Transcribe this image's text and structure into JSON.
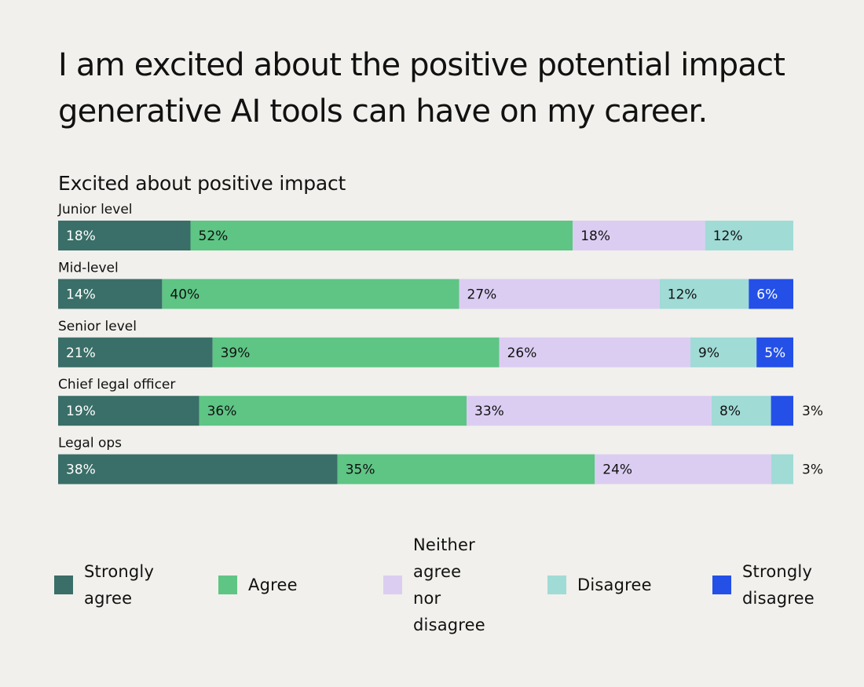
{
  "title": "I am excited about the positive potential impact generative AI tools can have on my career.",
  "chart_data": {
    "type": "bar",
    "orientation": "horizontal",
    "stacked": true,
    "title": "Excited about positive impact",
    "value_unit": "%",
    "categories": [
      "Junior level",
      "Mid-level",
      "Senior level",
      "Chief legal officer",
      "Legal ops"
    ],
    "series": [
      {
        "name": "Strongly agree",
        "color": "#3a6e68",
        "label_color": "#ffffff",
        "values": [
          18,
          14,
          21,
          19,
          38
        ]
      },
      {
        "name": "Agree",
        "color": "#5ec585",
        "label_color": "#111111",
        "values": [
          52,
          40,
          39,
          36,
          35
        ]
      },
      {
        "name": "Neither agree nor disagree",
        "color": "#dbcdf2",
        "label_color": "#111111",
        "values": [
          18,
          27,
          26,
          33,
          24
        ]
      },
      {
        "name": "Disagree",
        "color": "#a0dbd6",
        "label_color": "#111111",
        "values": [
          12,
          12,
          9,
          8,
          3
        ]
      },
      {
        "name": "Strongly disagree",
        "color": "#2450e8",
        "label_color": "#ffffff",
        "values": [
          0,
          6,
          5,
          3,
          0
        ]
      }
    ],
    "legend_position": "bottom",
    "grid": false
  },
  "legend": {
    "items": [
      {
        "label": "Strongly agree",
        "lines": [
          "Strongly",
          "agree"
        ]
      },
      {
        "label": "Agree",
        "lines": [
          "Agree"
        ]
      },
      {
        "label": "Neither agree nor disagree",
        "lines": [
          "Neither",
          "agree",
          "nor",
          "disagree"
        ]
      },
      {
        "label": "Disagree",
        "lines": [
          "Disagree"
        ]
      },
      {
        "label": "Strongly disagree",
        "lines": [
          "Strongly",
          "disagree"
        ]
      }
    ]
  }
}
